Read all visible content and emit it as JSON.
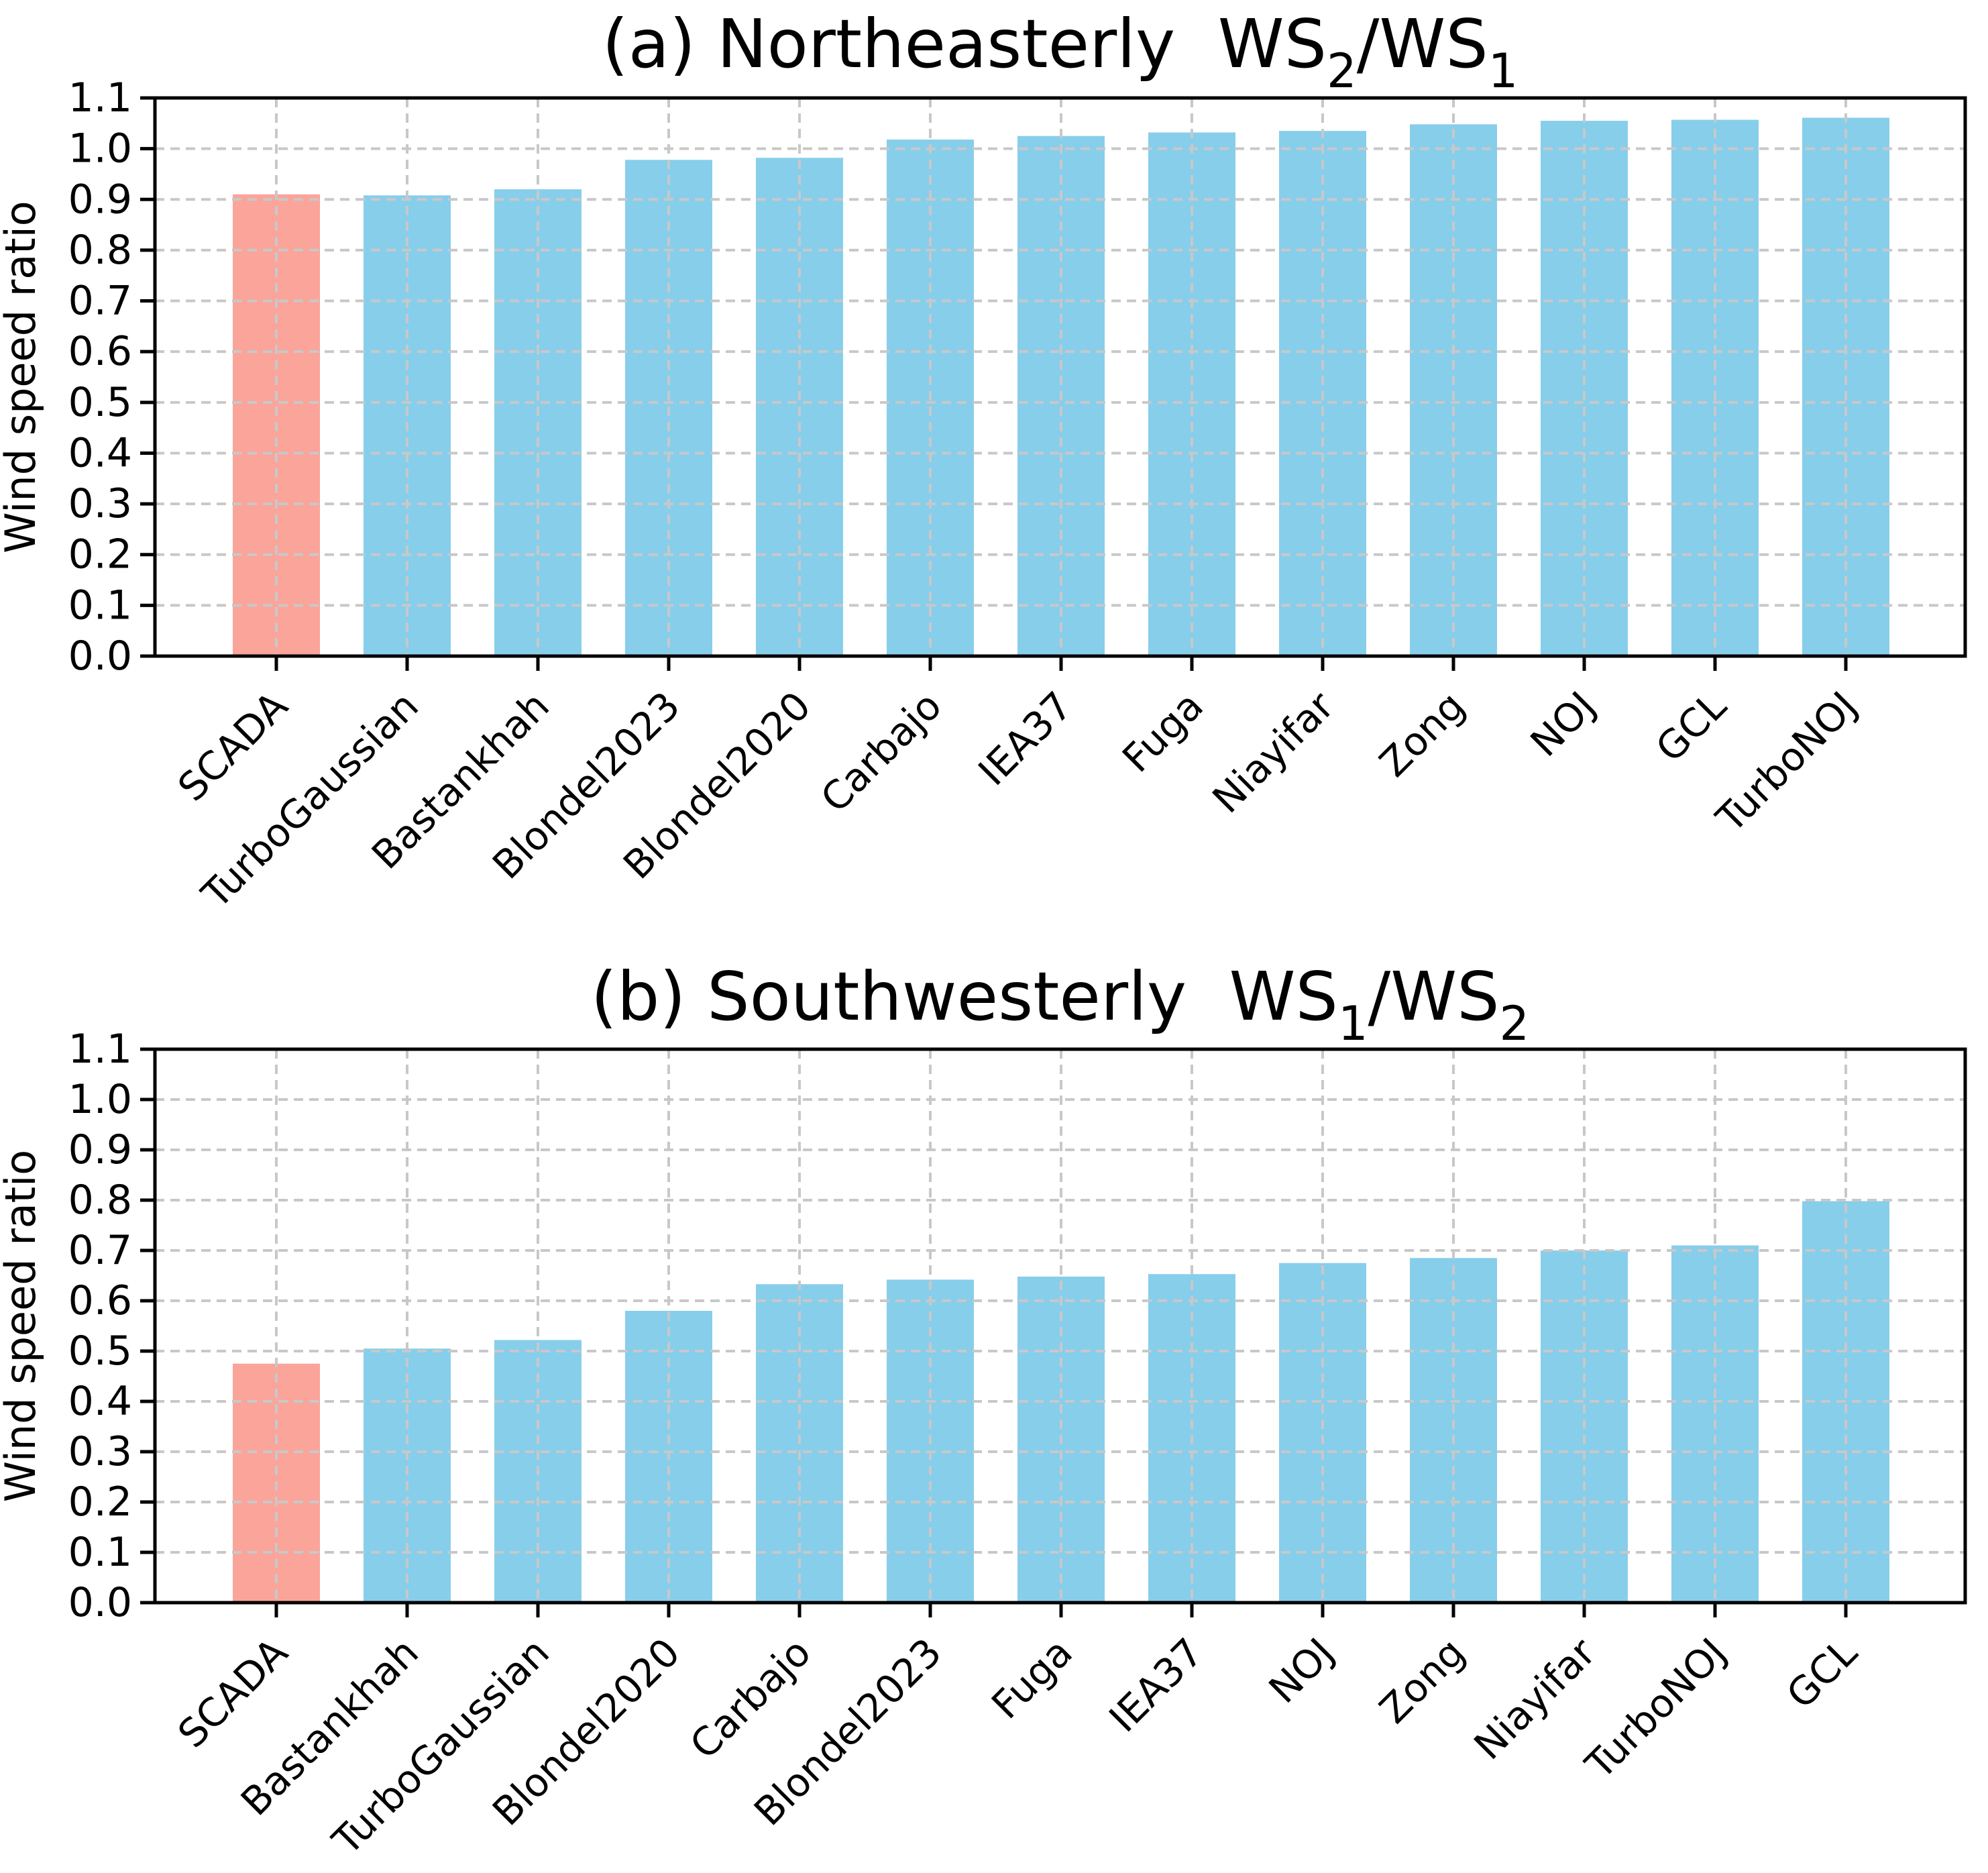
{
  "page": {
    "background": "#ffffff"
  },
  "style": {
    "bar_color": "#87ceeb",
    "highlight_color": "#faa49a",
    "grid_color": "#c8c8c8",
    "axis_color": "#000000",
    "text_color": "#000000"
  },
  "chart_data": [
    {
      "id": "a",
      "type": "bar",
      "title_parts": [
        {
          "text": "(a) Northeasterly  WS"
        },
        {
          "text": "2",
          "sub": true
        },
        {
          "text": "/WS"
        },
        {
          "text": "1",
          "sub": true
        }
      ],
      "title_plain": "(a) Northeasterly WS2/WS1",
      "ylabel": "Wind speed ratio",
      "xlabel": "",
      "ylim": [
        0.0,
        1.1
      ],
      "ytick_labels": [
        "0.0",
        "0.1",
        "0.2",
        "0.3",
        "0.4",
        "0.5",
        "0.6",
        "0.7",
        "0.8",
        "0.9",
        "1.0",
        "1.1"
      ],
      "grid": true,
      "legend": null,
      "highlight_index": 0,
      "categories": [
        "SCADA",
        "TurboGaussian",
        "Bastankhah",
        "Blondel2023",
        "Blondel2020",
        "Carbajo",
        "IEA37",
        "Fuga",
        "Niayifar",
        "Zong",
        "NOJ",
        "GCL",
        "TurboNOJ"
      ],
      "values": [
        0.91,
        0.908,
        0.92,
        0.978,
        0.982,
        1.018,
        1.025,
        1.032,
        1.035,
        1.048,
        1.055,
        1.057,
        1.061
      ]
    },
    {
      "id": "b",
      "type": "bar",
      "title_parts": [
        {
          "text": "(b) Southwesterly  WS"
        },
        {
          "text": "1",
          "sub": true
        },
        {
          "text": "/WS"
        },
        {
          "text": "2",
          "sub": true
        }
      ],
      "title_plain": "(b) Southwesterly WS1/WS2",
      "ylabel": "Wind speed ratio",
      "xlabel": "",
      "ylim": [
        0.0,
        1.1
      ],
      "ytick_labels": [
        "0.0",
        "0.1",
        "0.2",
        "0.3",
        "0.4",
        "0.5",
        "0.6",
        "0.7",
        "0.8",
        "0.9",
        "1.0",
        "1.1"
      ],
      "grid": true,
      "legend": null,
      "highlight_index": 0,
      "categories": [
        "SCADA",
        "Bastankhah",
        "TurboGaussian",
        "Blondel2020",
        "Carbajo",
        "Blondel2023",
        "Fuga",
        "IEA37",
        "NOJ",
        "Zong",
        "Niayifar",
        "TurboNOJ",
        "GCL"
      ],
      "values": [
        0.475,
        0.505,
        0.522,
        0.58,
        0.633,
        0.642,
        0.648,
        0.653,
        0.675,
        0.685,
        0.7,
        0.71,
        0.798
      ]
    }
  ]
}
